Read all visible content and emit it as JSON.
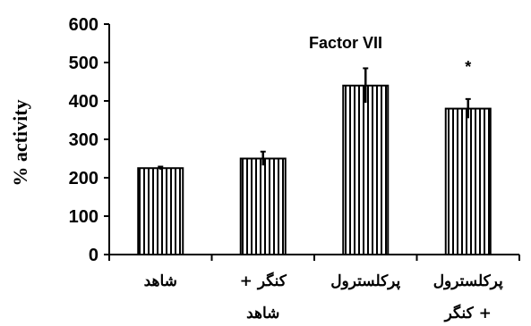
{
  "chart_data": {
    "type": "bar",
    "title": "Factor VII",
    "ylabel": "% activity",
    "xlabel": "",
    "ylim": [
      0,
      600
    ],
    "yticks": [
      0,
      100,
      200,
      300,
      400,
      500,
      600
    ],
    "grid": false,
    "bar_style": "vertical-hatch",
    "colors": {
      "bar_fill": "#ffffff",
      "stripe": "#000000",
      "axis": "#000000"
    },
    "categories": [
      {
        "line1": "شاهد",
        "line2": ""
      },
      {
        "line1": "کنگر +",
        "line2": "شاهد"
      },
      {
        "line1": "پرکلسترول",
        "line2": ""
      },
      {
        "line1": "پرکلسترول",
        "line2": "+ کنگر"
      }
    ],
    "values": [
      225,
      250,
      440,
      380
    ],
    "errors": [
      4,
      18,
      45,
      25
    ],
    "annotations": [
      {
        "category_index": 3,
        "text": "*"
      }
    ]
  }
}
